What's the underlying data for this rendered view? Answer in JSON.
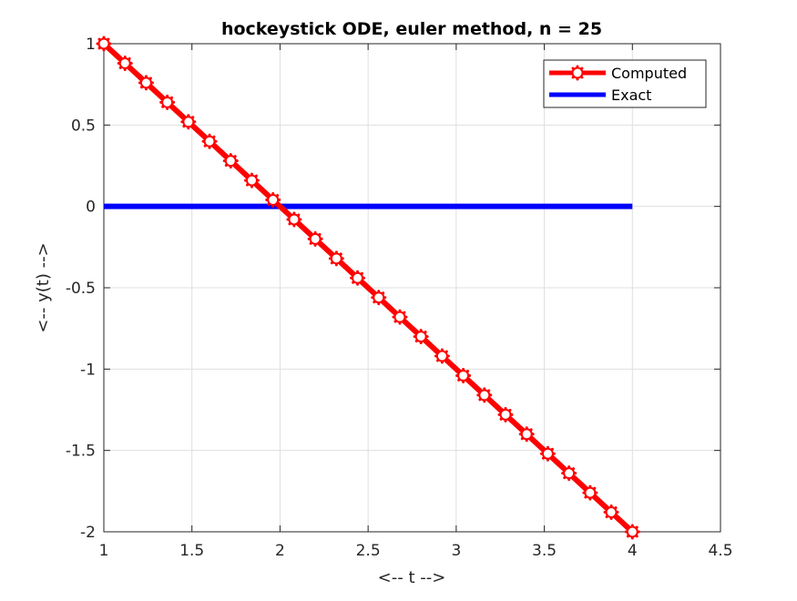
{
  "chart_data": {
    "type": "line",
    "title": "hockeystick ODE, euler method, n = 25",
    "xlabel": "<-- t -->",
    "ylabel": "<-- y(t) -->",
    "xlim": [
      1,
      4.5
    ],
    "ylim": [
      -2,
      1
    ],
    "xticks": [
      1,
      1.5,
      2,
      2.5,
      3,
      3.5,
      4,
      4.5
    ],
    "xtick_labels": [
      "1",
      "1.5",
      "2",
      "2.5",
      "3",
      "3.5",
      "4",
      "4.5"
    ],
    "yticks": [
      -2,
      -1.5,
      -1,
      -0.5,
      0,
      0.5,
      1
    ],
    "ytick_labels": [
      "-2",
      "-1.5",
      "-1",
      "-0.5",
      "0",
      "0.5",
      "1"
    ],
    "grid": true,
    "legend_position": "top-right",
    "series": [
      {
        "name": "Computed",
        "color": "#ff0000",
        "marker": "asterisk",
        "x": [
          1.0,
          1.12,
          1.24,
          1.36,
          1.48,
          1.6,
          1.72,
          1.84,
          1.96,
          2.08,
          2.2,
          2.32,
          2.44,
          2.56,
          2.68,
          2.8,
          2.92,
          3.04,
          3.16,
          3.28,
          3.4,
          3.52,
          3.64,
          3.76,
          3.88,
          4.0
        ],
        "y": [
          1.0,
          0.88,
          0.76,
          0.64,
          0.52,
          0.4,
          0.28,
          0.16,
          0.04,
          -0.08,
          -0.2,
          -0.32,
          -0.44,
          -0.56,
          -0.68,
          -0.8,
          -0.92,
          -1.04,
          -1.16,
          -1.28,
          -1.4,
          -1.52,
          -1.64,
          -1.76,
          -1.88,
          -2.0
        ]
      },
      {
        "name": "Exact",
        "color": "#0000ff",
        "marker": "none",
        "x": [
          1.0,
          4.0
        ],
        "y": [
          0.0,
          0.0
        ]
      }
    ]
  }
}
